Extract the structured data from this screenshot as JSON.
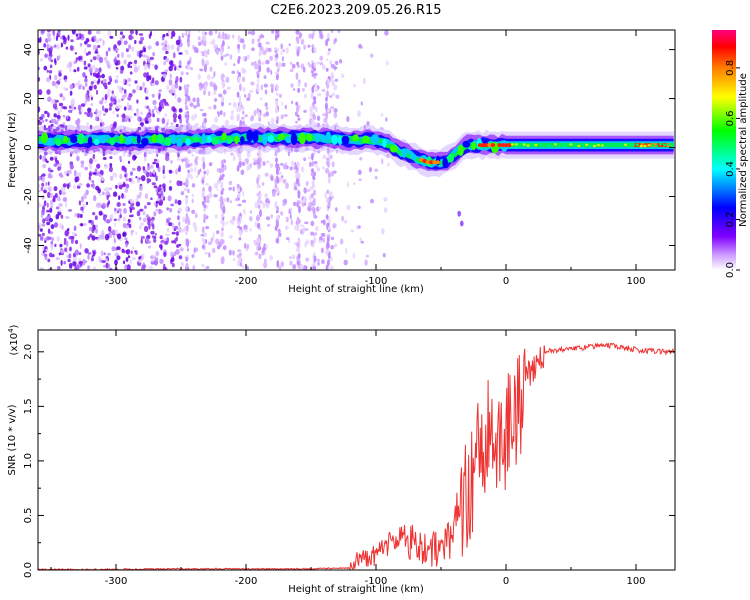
{
  "figure": {
    "title": "C2E6.2023.209.05.26.R15"
  },
  "chart_data": [
    {
      "type": "heatmap",
      "title": "",
      "xlabel": "Height of straight line (km)",
      "ylabel": "Frequency (Hz)",
      "xlim": [
        -360,
        130
      ],
      "ylim": [
        -50,
        48
      ],
      "xticks": [
        -300,
        -200,
        -100,
        0,
        100
      ],
      "yticks": [
        -40,
        -20,
        0,
        20,
        40
      ],
      "grid": false,
      "colorbar": {
        "label": "Normalized spectral amplitude",
        "range": [
          0.0,
          0.95
        ],
        "ticks": [
          "0.0",
          "0.2",
          "0.4",
          "0.6",
          "0.8"
        ],
        "colormap": [
          "#ffffff",
          "#8000ff",
          "#0000ff",
          "#00ffff",
          "#00ff00",
          "#ffff00",
          "#ff8000",
          "#ff0000",
          "#ff0080"
        ]
      },
      "ridge": {
        "x": [
          -360,
          -300,
          -250,
          -200,
          -150,
          -120,
          -100,
          -90,
          -80,
          -70,
          -60,
          -50,
          -45,
          -40,
          -35,
          -30,
          -25,
          -20,
          -10,
          0,
          10,
          50,
          100,
          130
        ],
        "y": [
          3,
          3,
          3,
          4,
          4,
          3,
          3,
          1,
          -2,
          -4,
          -6,
          -6,
          -5,
          -3,
          -1,
          1,
          1,
          1,
          1,
          1,
          1,
          1,
          1,
          1
        ]
      },
      "scatter_extent": [
        -360,
        -120
      ],
      "notable_points": [
        {
          "x": -36,
          "y": -27
        },
        {
          "x": -34,
          "y": -31
        }
      ]
    },
    {
      "type": "line",
      "title": "",
      "xlabel": "Height of straight line (km)",
      "ylabel": "SNR (10 * v/v)",
      "scale_label": "(x10",
      "scale_exponent": "4",
      "scale_close": ")",
      "xlim": [
        -360,
        130
      ],
      "ylim": [
        0,
        2.2
      ],
      "xticks": [
        -300,
        -200,
        -100,
        0,
        100
      ],
      "yticks": [
        "0.0",
        "0.5",
        "1.0",
        "1.5",
        "2.0"
      ],
      "grid": false,
      "series": [
        {
          "color": "#ee3333",
          "x": [
            -360,
            -300,
            -250,
            -200,
            -150,
            -120,
            -110,
            -100,
            -90,
            -80,
            -70,
            -60,
            -50,
            -40,
            -35,
            -30,
            -25,
            -20,
            -15,
            -10,
            -5,
            0,
            5,
            10,
            15,
            20,
            25,
            30,
            40,
            50,
            60,
            70,
            80,
            90,
            100,
            110,
            120,
            130
          ],
          "values": [
            0.005,
            0.005,
            0.01,
            0.01,
            0.01,
            0.02,
            0.05,
            0.1,
            0.2,
            0.3,
            0.25,
            0.2,
            0.2,
            0.3,
            0.4,
            0.7,
            0.9,
            1.1,
            1.2,
            1.3,
            1.2,
            1.25,
            1.35,
            1.55,
            1.75,
            1.85,
            1.95,
            2.0,
            2.02,
            2.03,
            2.04,
            2.05,
            2.06,
            2.04,
            2.02,
            2.01,
            2.0,
            2.0
          ]
        }
      ]
    }
  ]
}
